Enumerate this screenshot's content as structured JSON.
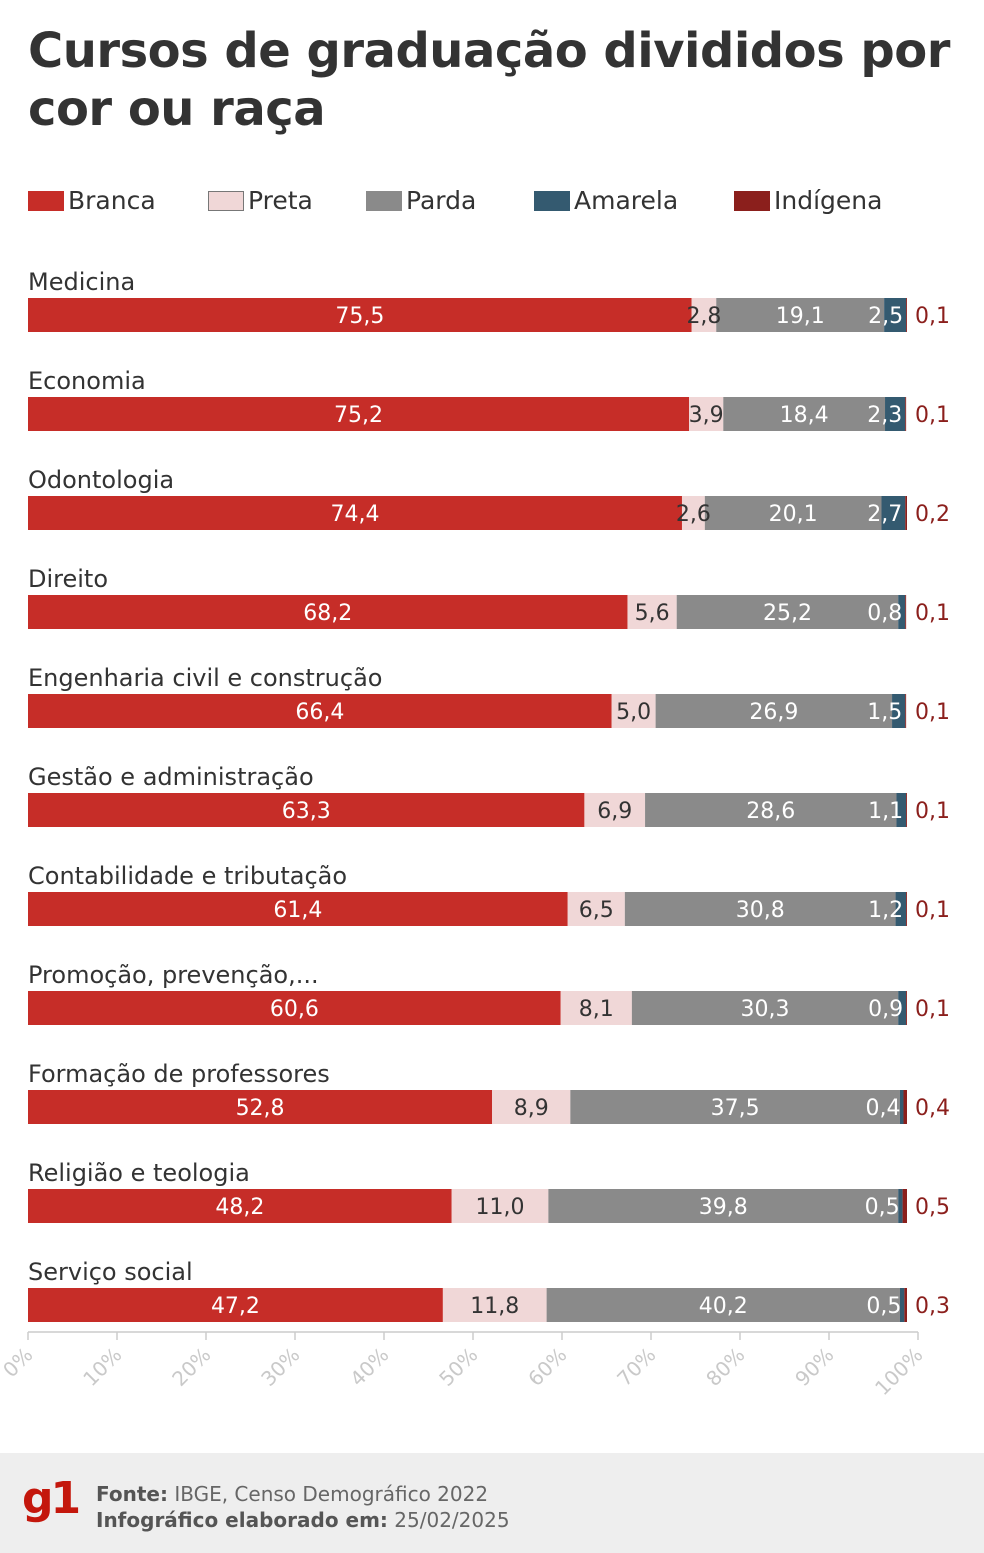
{
  "title": "Cursos de graduação divididos por cor ou raça",
  "legend": [
    {
      "key": "branca",
      "label": "Branca",
      "color": "#c62d28"
    },
    {
      "key": "preta",
      "label": "Preta",
      "color": "#f0d7d7"
    },
    {
      "key": "parda",
      "label": "Parda",
      "color": "#8a8a8a"
    },
    {
      "key": "amarela",
      "label": "Amarela",
      "color": "#345a70"
    },
    {
      "key": "indigena",
      "label": "Indígena",
      "color": "#8b1f1c"
    }
  ],
  "chart_data": {
    "type": "bar",
    "orientation": "horizontal",
    "stacked": true,
    "title": "Cursos de graduação divididos por cor ou raça",
    "xlim": [
      0,
      100
    ],
    "x_ticks": [
      "0%",
      "10%",
      "20%",
      "30%",
      "40%",
      "50%",
      "60%",
      "70%",
      "80%",
      "90%",
      "100%"
    ],
    "categories": [
      "Medicina",
      "Economia",
      "Odontologia",
      "Direito",
      "Engenharia civil e construção",
      "Gestão e administração",
      "Contabilidade e tributação",
      "Promoção, prevenção,...",
      "Formação de professores",
      "Religião e teologia",
      "Serviço social"
    ],
    "series": [
      {
        "name": "Branca",
        "values": [
          75.5,
          75.2,
          74.4,
          68.2,
          66.4,
          63.3,
          61.4,
          60.6,
          52.8,
          48.2,
          47.2
        ],
        "labels": [
          "75,5",
          "75,2",
          "74,4",
          "68,2",
          "66,4",
          "63,3",
          "61,4",
          "60,6",
          "52,8",
          "48,2",
          "47,2"
        ]
      },
      {
        "name": "Preta",
        "values": [
          2.8,
          3.9,
          2.6,
          5.6,
          5.0,
          6.9,
          6.5,
          8.1,
          8.9,
          11.0,
          11.8
        ],
        "labels": [
          "2,8",
          "3,9",
          "2,6",
          "5,6",
          "5,0",
          "6,9",
          "6,5",
          "8,1",
          "8,9",
          "11,0",
          "11,8"
        ]
      },
      {
        "name": "Parda",
        "values": [
          19.1,
          18.4,
          20.1,
          25.2,
          26.9,
          28.6,
          30.8,
          30.3,
          37.5,
          39.8,
          40.2
        ],
        "labels": [
          "19,1",
          "18,4",
          "20,1",
          "25,2",
          "26,9",
          "28,6",
          "30,8",
          "30,3",
          "37,5",
          "39,8",
          "40,2"
        ]
      },
      {
        "name": "Amarela",
        "values": [
          2.5,
          2.3,
          2.7,
          0.8,
          1.5,
          1.1,
          1.2,
          0.9,
          0.4,
          0.5,
          0.5
        ],
        "labels": [
          "2,5",
          "2,3",
          "2,7",
          "0,8",
          "1,5",
          "1,1",
          "1,2",
          "0,9",
          "0,4",
          "0,5",
          "0,5"
        ]
      },
      {
        "name": "Indígena",
        "values": [
          0.1,
          0.1,
          0.2,
          0.1,
          0.1,
          0.1,
          0.1,
          0.1,
          0.4,
          0.5,
          0.3
        ],
        "labels": [
          "0,1",
          "0,1",
          "0,2",
          "0,1",
          "0,1",
          "0,1",
          "0,1",
          "0,1",
          "0,4",
          "0,5",
          "0,3"
        ]
      }
    ]
  },
  "footer": {
    "logo": "g1",
    "source_label": "Fonte:",
    "source_text": "IBGE, Censo Demográfico 2022",
    "date_label": "Infográfico elaborado em:",
    "date_text": "25/02/2025"
  }
}
